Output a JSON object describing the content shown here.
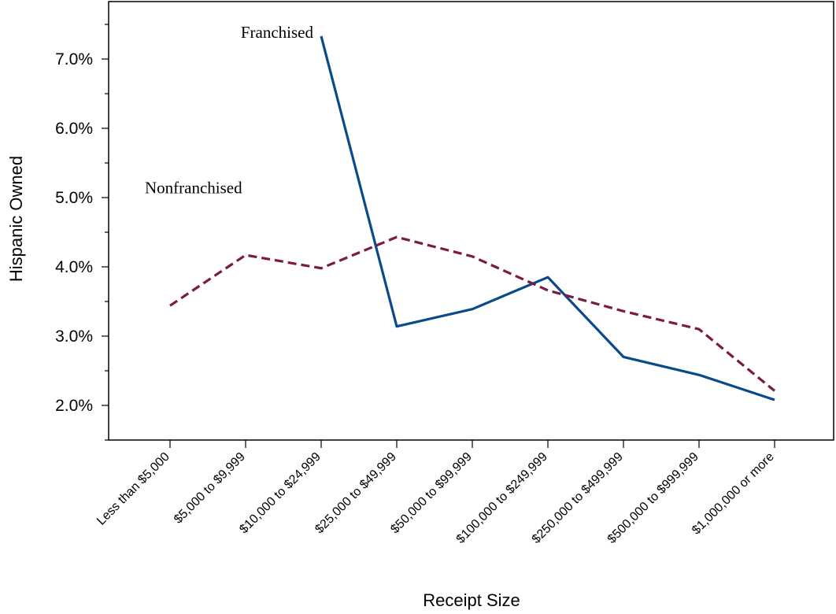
{
  "chart_data": {
    "type": "line",
    "xlabel": "Receipt Size",
    "ylabel": "Hispanic Owned",
    "ylim": [
      1.5,
      7.5
    ],
    "y_ticks": [
      {
        "value": 2.0,
        "label": "2.0%"
      },
      {
        "value": 3.0,
        "label": "3.0%"
      },
      {
        "value": 4.0,
        "label": "4.0%"
      },
      {
        "value": 5.0,
        "label": "5.0%"
      },
      {
        "value": 6.0,
        "label": "6.0%"
      },
      {
        "value": 7.0,
        "label": "7.0%"
      }
    ],
    "categories": [
      "Less than $5,000",
      "$5,000 to $9,999",
      "$10,000 to $24,999",
      "$25,000 to $49,999",
      "$50,000 to $99,999",
      "$100,000 to $249,999",
      "$250,000 to $499,999",
      "$500,000 to $999,999",
      "$1,000,000 or more"
    ],
    "grid": false,
    "legend": "inline labels",
    "series": [
      {
        "name": "Franchised",
        "color": "#0b4a8a",
        "style": "solid",
        "values": [
          null,
          null,
          7.33,
          3.14,
          3.39,
          3.85,
          2.7,
          2.44,
          2.08
        ]
      },
      {
        "name": "Nonfranchised",
        "color": "#7a1a47",
        "style": "dashed",
        "values": [
          3.44,
          4.17,
          3.98,
          4.43,
          4.15,
          3.66,
          3.36,
          3.1,
          2.21
        ]
      }
    ]
  }
}
